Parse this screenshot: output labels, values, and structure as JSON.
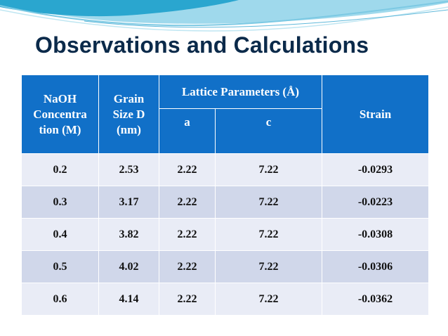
{
  "slide": {
    "title": "Observations and Calculations"
  },
  "table": {
    "headers": {
      "naoh": "NaOH Concentra tion (M)",
      "grain": "Grain Size D (nm)",
      "lattice": "Lattice Parameters (Å)",
      "a": "a",
      "c": "c",
      "strain": "Strain"
    },
    "rows": [
      [
        "0.2",
        "2.53",
        "2.22",
        "7.22",
        "-0.0293"
      ],
      [
        "0.3",
        "3.17",
        "2.22",
        "7.22",
        "-0.0223"
      ],
      [
        "0.4",
        "3.82",
        "2.22",
        "7.22",
        "-0.0308"
      ],
      [
        "0.5",
        "4.02",
        "2.22",
        "7.22",
        "-0.0306"
      ],
      [
        "0.6",
        "4.14",
        "2.22",
        "7.22",
        "-0.0362"
      ]
    ]
  },
  "colors": {
    "header_bg": "#1170c8",
    "row_light": "#e9ecf6",
    "row_dark": "#d0d7ea",
    "title": "#0b2a4a"
  }
}
